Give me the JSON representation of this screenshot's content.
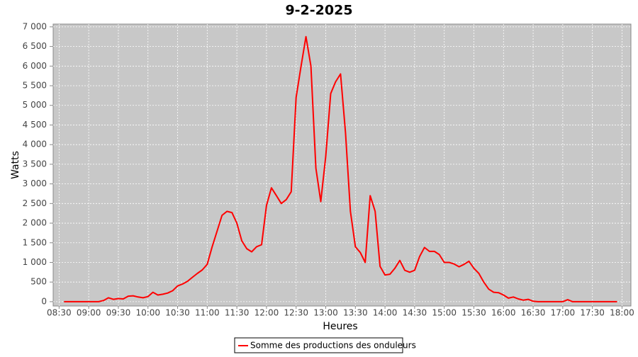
{
  "chart_data": {
    "type": "line",
    "title": "9-2-2025",
    "x_label": "Heures",
    "y_label": "Watts",
    "x": [
      "08:35",
      "08:40",
      "08:45",
      "08:50",
      "08:55",
      "09:00",
      "09:05",
      "09:10",
      "09:15",
      "09:20",
      "09:25",
      "09:30",
      "09:35",
      "09:40",
      "09:45",
      "09:50",
      "09:55",
      "10:00",
      "10:05",
      "10:10",
      "10:15",
      "10:20",
      "10:25",
      "10:30",
      "10:35",
      "10:40",
      "10:45",
      "10:50",
      "10:55",
      "11:00",
      "11:05",
      "11:10",
      "11:15",
      "11:20",
      "11:25",
      "11:30",
      "11:35",
      "11:40",
      "11:45",
      "11:50",
      "11:55",
      "12:00",
      "12:05",
      "12:10",
      "12:15",
      "12:20",
      "12:25",
      "12:30",
      "12:35",
      "12:40",
      "12:45",
      "12:50",
      "12:55",
      "13:00",
      "13:05",
      "13:10",
      "13:15",
      "13:20",
      "13:25",
      "13:30",
      "13:35",
      "13:40",
      "13:45",
      "13:50",
      "13:55",
      "14:00",
      "14:05",
      "14:10",
      "14:15",
      "14:20",
      "14:25",
      "14:30",
      "14:35",
      "14:40",
      "14:45",
      "14:50",
      "14:55",
      "15:00",
      "15:05",
      "15:10",
      "15:15",
      "15:20",
      "15:25",
      "15:30",
      "15:35",
      "15:40",
      "15:45",
      "15:50",
      "15:55",
      "16:00",
      "16:05",
      "16:10",
      "16:15",
      "16:20",
      "16:25",
      "16:30",
      "16:35",
      "16:40",
      "16:45",
      "16:50",
      "16:55",
      "17:00",
      "17:05",
      "17:10",
      "17:15",
      "17:20",
      "17:25",
      "17:30",
      "17:35",
      "17:40",
      "17:45",
      "17:50",
      "17:55"
    ],
    "series": [
      {
        "name": "Somme des productions des onduleurs",
        "color": "#ff0000",
        "values": [
          0,
          0,
          0,
          0,
          0,
          0,
          0,
          0,
          30,
          100,
          60,
          80,
          70,
          140,
          150,
          120,
          100,
          130,
          240,
          170,
          190,
          220,
          280,
          400,
          450,
          520,
          620,
          720,
          810,
          950,
          1400,
          1800,
          2200,
          2300,
          2270,
          2000,
          1550,
          1350,
          1270,
          1400,
          1450,
          2450,
          2900,
          2700,
          2500,
          2600,
          2800,
          5200,
          6000,
          6750,
          6000,
          3400,
          2550,
          3700,
          5300,
          5600,
          5800,
          4300,
          2300,
          1400,
          1250,
          1000,
          2700,
          2300,
          900,
          680,
          700,
          850,
          1050,
          800,
          750,
          800,
          1150,
          1380,
          1280,
          1280,
          1200,
          1000,
          1000,
          960,
          890,
          950,
          1030,
          850,
          720,
          500,
          320,
          240,
          230,
          170,
          90,
          120,
          70,
          40,
          60,
          10,
          0,
          0,
          0,
          0,
          0,
          0,
          50,
          0,
          0,
          0,
          0,
          0,
          0,
          0,
          0,
          0,
          0
        ]
      }
    ],
    "xlim": [
      "08:24",
      "18:09"
    ],
    "xticks": [
      "08:30",
      "09:00",
      "09:30",
      "10:00",
      "10:30",
      "11:00",
      "11:30",
      "12:00",
      "12:30",
      "13:00",
      "13:30",
      "14:00",
      "14:30",
      "15:00",
      "15:30",
      "16:00",
      "16:30",
      "17:00",
      "17:30",
      "18:00"
    ],
    "ylim": [
      -110,
      7070
    ],
    "yticks": [
      0,
      500,
      {
        "value": 1000,
        "label": "1 000"
      },
      {
        "value": 1500,
        "label": "1 500"
      },
      {
        "value": 2000,
        "label": "2 000"
      },
      {
        "value": 2500,
        "label": "2 500"
      },
      {
        "value": 3000,
        "label": "3 000"
      },
      {
        "value": 3500,
        "label": "3 500"
      },
      {
        "value": 4000,
        "label": "4 000"
      },
      {
        "value": 4500,
        "label": "4 500"
      },
      {
        "value": 5000,
        "label": "5 000"
      },
      {
        "value": 5500,
        "label": "5 500"
      },
      {
        "value": 6000,
        "label": "6 000"
      },
      {
        "value": 6500,
        "label": "6 500"
      },
      {
        "value": 7000,
        "label": "7 000"
      }
    ],
    "grid": true
  }
}
